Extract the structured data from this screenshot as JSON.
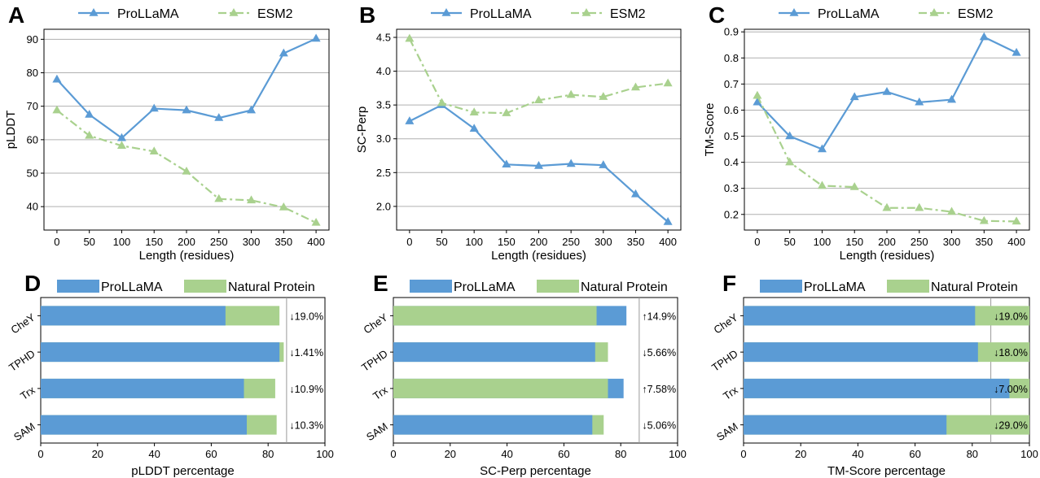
{
  "colors": {
    "prollama": "#5b9bd5",
    "esm2": "#a9d18e",
    "natural": "#a9d18e",
    "grid": "#b0b0b0"
  },
  "chart_data": [
    {
      "panel": "A",
      "type": "line",
      "x": [
        0,
        50,
        100,
        150,
        200,
        250,
        300,
        350,
        400
      ],
      "series": [
        {
          "name": "ProLLaMA",
          "values": [
            78.0,
            67.5,
            60.5,
            69.3,
            68.8,
            66.5,
            68.8,
            85.8,
            90.2
          ]
        },
        {
          "name": "ESM2",
          "values": [
            68.8,
            61.2,
            58.2,
            56.5,
            50.5,
            42.3,
            41.9,
            39.8,
            35.2
          ]
        }
      ],
      "xlabel": "Length (residues)",
      "ylabel": "pLDDT",
      "xticks": [
        0,
        50,
        100,
        150,
        200,
        250,
        300,
        350,
        400
      ],
      "yticks": [
        40,
        50,
        60,
        70,
        80,
        90
      ],
      "xlim": [
        -20,
        420
      ],
      "ylim": [
        33,
        93
      ],
      "grid": "horizontal",
      "legend": "top"
    },
    {
      "panel": "B",
      "type": "line",
      "x": [
        0,
        50,
        100,
        150,
        200,
        250,
        300,
        350,
        400
      ],
      "series": [
        {
          "name": "ProLLaMA",
          "values": [
            3.26,
            3.5,
            3.15,
            2.62,
            2.6,
            2.63,
            2.61,
            2.18,
            1.77
          ]
        },
        {
          "name": "ESM2",
          "values": [
            4.48,
            3.53,
            3.39,
            3.38,
            3.57,
            3.65,
            3.62,
            3.76,
            3.82
          ]
        }
      ],
      "xlabel": "Length (residues)",
      "ylabel": "SC-Perp",
      "xticks": [
        0,
        50,
        100,
        150,
        200,
        250,
        300,
        350,
        400
      ],
      "yticks": [
        "2.0",
        "2.5",
        "3.0",
        "3.5",
        "4.0",
        "4.5"
      ],
      "xlim": [
        -20,
        420
      ],
      "ylim": [
        1.65,
        4.62
      ],
      "grid": "horizontal",
      "legend": "top"
    },
    {
      "panel": "C",
      "type": "line",
      "x": [
        0,
        50,
        100,
        150,
        200,
        250,
        300,
        350,
        400
      ],
      "series": [
        {
          "name": "ProLLaMA",
          "values": [
            0.63,
            0.5,
            0.45,
            0.65,
            0.67,
            0.63,
            0.64,
            0.88,
            0.82
          ]
        },
        {
          "name": "ESM2",
          "values": [
            0.655,
            0.4,
            0.31,
            0.305,
            0.225,
            0.225,
            0.21,
            0.175,
            0.173
          ]
        }
      ],
      "xlabel": "Length (residues)",
      "ylabel": "TM-Score",
      "xticks": [
        0,
        50,
        100,
        150,
        200,
        250,
        300,
        350,
        400
      ],
      "yticks": [
        "0.2",
        "0.3",
        "0.4",
        "0.5",
        "0.6",
        "0.7",
        "0.8",
        "0.9"
      ],
      "xlim": [
        -20,
        420
      ],
      "ylim": [
        0.14,
        0.91
      ],
      "grid": "horizontal",
      "legend": "top"
    },
    {
      "panel": "D",
      "type": "bar",
      "orientation": "horizontal",
      "categories": [
        "CheY",
        "TPHD",
        "Trx",
        "SAM"
      ],
      "series": [
        {
          "name": "ProLLaMA",
          "values": [
            65.0,
            84.0,
            71.5,
            72.5
          ]
        },
        {
          "name": "Natural Protein",
          "values": [
            84.0,
            85.5,
            82.5,
            83.0
          ]
        }
      ],
      "front_series": [
        "ProLLaMA",
        "ProLLaMA",
        "ProLLaMA",
        "ProLLaMA"
      ],
      "annotations": [
        "↓19.0%",
        "↓1.41%",
        "↓10.9%",
        "↓10.3%"
      ],
      "xlabel": "pLDDT percentage",
      "xticks": [
        0,
        20,
        40,
        60,
        80,
        100
      ],
      "xlim": [
        0,
        100
      ],
      "legend": "top"
    },
    {
      "panel": "E",
      "type": "bar",
      "orientation": "horizontal",
      "categories": [
        "CheY",
        "TPHD",
        "Trx",
        "SAM"
      ],
      "series": [
        {
          "name": "ProLLaMA",
          "values": [
            82.0,
            71.0,
            81.0,
            70.0
          ]
        },
        {
          "name": "Natural Protein",
          "values": [
            71.5,
            75.5,
            75.5,
            74.0
          ]
        }
      ],
      "front_series": [
        "Natural Protein",
        "ProLLaMA",
        "Natural Protein",
        "ProLLaMA"
      ],
      "annotations": [
        "↑14.9%",
        "↓5.66%",
        "↑7.58%",
        "↓5.06%"
      ],
      "xlabel": "SC-Perp percentage",
      "xticks": [
        0,
        20,
        40,
        60,
        80,
        100
      ],
      "xlim": [
        0,
        100
      ],
      "legend": "top"
    },
    {
      "panel": "F",
      "type": "bar",
      "orientation": "horizontal",
      "categories": [
        "CheY",
        "TPHD",
        "Trx",
        "SAM"
      ],
      "series": [
        {
          "name": "ProLLaMA",
          "values": [
            81.0,
            82.0,
            93.0,
            71.0
          ]
        },
        {
          "name": "Natural Protein",
          "values": [
            100.0,
            100.0,
            100.0,
            100.0
          ]
        }
      ],
      "front_series": [
        "ProLLaMA",
        "ProLLaMA",
        "ProLLaMA",
        "ProLLaMA"
      ],
      "annotations": [
        "↓19.0%",
        "↓18.0%",
        "↓7.00%",
        "↓29.0%"
      ],
      "xlabel": "TM-Score percentage",
      "xticks": [
        0,
        20,
        40,
        60,
        80,
        100
      ],
      "xlim": [
        0,
        100
      ],
      "legend": "top"
    }
  ]
}
